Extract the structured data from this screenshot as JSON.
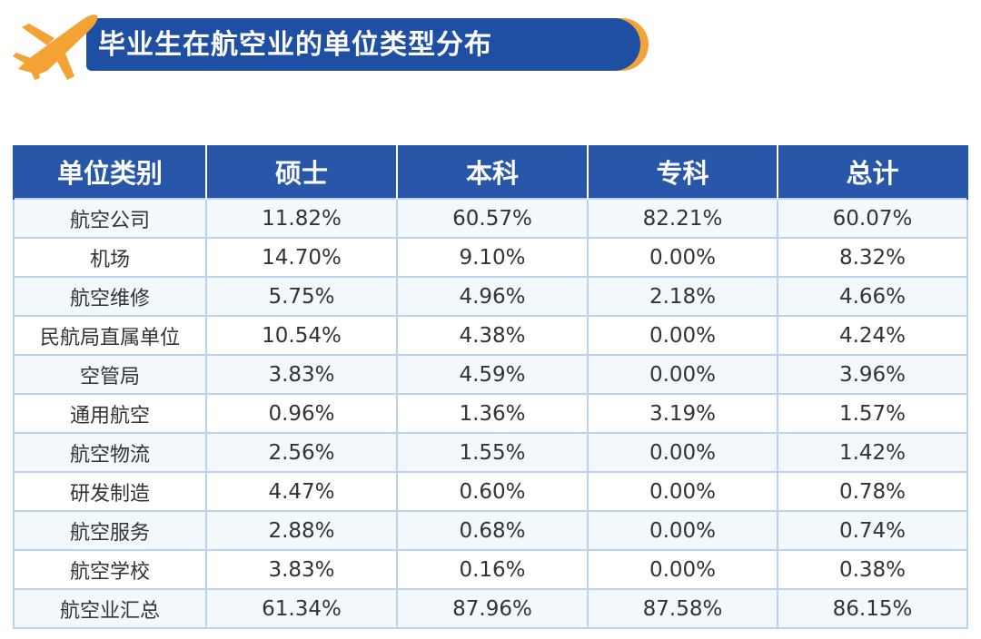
{
  "title": "毕业生在航空业的单位类型分布",
  "colors": {
    "banner": "#1f4fa3",
    "banner_accent": "#f2a33a",
    "header_bg": "#2857aa",
    "grid": "#bcd3ee",
    "plane_icon": "#f4a233"
  },
  "icon": "airplane-icon",
  "table": {
    "headers": [
      "单位类别",
      "硕士",
      "本科",
      "专科",
      "总计"
    ],
    "rows": [
      [
        "航空公司",
        "11.82%",
        "60.57%",
        "82.21%",
        "60.07%"
      ],
      [
        "机场",
        "14.70%",
        "9.10%",
        "0.00%",
        "8.32%"
      ],
      [
        "航空维修",
        "5.75%",
        "4.96%",
        "2.18%",
        "4.66%"
      ],
      [
        "民航局直属单位",
        "10.54%",
        "4.38%",
        "0.00%",
        "4.24%"
      ],
      [
        "空管局",
        "3.83%",
        "4.59%",
        "0.00%",
        "3.96%"
      ],
      [
        "通用航空",
        "0.96%",
        "1.36%",
        "3.19%",
        "1.57%"
      ],
      [
        "航空物流",
        "2.56%",
        "1.55%",
        "0.00%",
        "1.42%"
      ],
      [
        "研发制造",
        "4.47%",
        "0.60%",
        "0.00%",
        "0.78%"
      ],
      [
        "航空服务",
        "2.88%",
        "0.68%",
        "0.00%",
        "0.74%"
      ],
      [
        "航空学校",
        "3.83%",
        "0.16%",
        "0.00%",
        "0.38%"
      ],
      [
        "航空业汇总",
        "61.34%",
        "87.96%",
        "87.58%",
        "86.15%"
      ]
    ]
  }
}
